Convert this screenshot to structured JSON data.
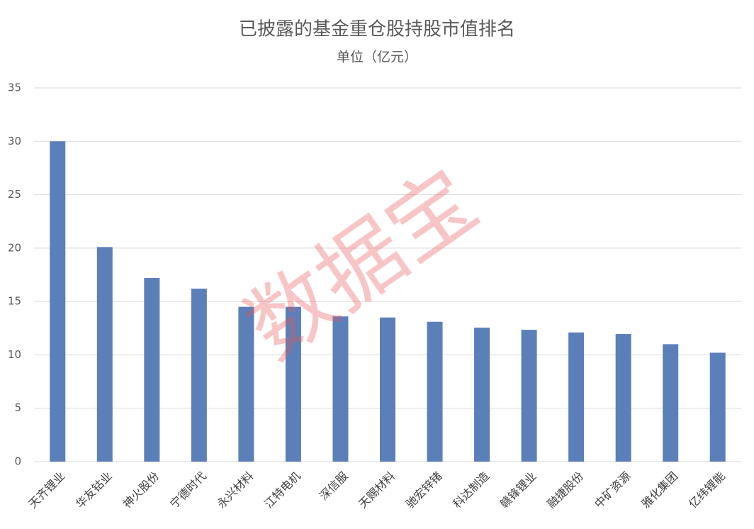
{
  "chart_data": {
    "type": "bar",
    "title": "已披露的基金重仓股持股市值排名",
    "subtitle": "单位（亿元）",
    "categories": [
      "天齐锂业",
      "华友钴业",
      "神火股份",
      "宁德时代",
      "永兴材料",
      "江特电机",
      "深信服",
      "天赐材料",
      "驰宏锌锗",
      "科达制造",
      "赣锋锂业",
      "融捷股份",
      "中矿资源",
      "雅化集团",
      "亿纬锂能"
    ],
    "values": [
      30.0,
      20.1,
      17.2,
      16.2,
      14.5,
      14.5,
      13.6,
      13.5,
      13.1,
      12.55,
      12.35,
      12.1,
      11.95,
      11.0,
      10.2
    ],
    "color": "#5b7fb9",
    "ylim": [
      0,
      35
    ],
    "yticks": [
      0,
      5,
      10,
      15,
      20,
      25,
      30,
      35
    ],
    "grid": true,
    "watermark": "数据宝"
  }
}
